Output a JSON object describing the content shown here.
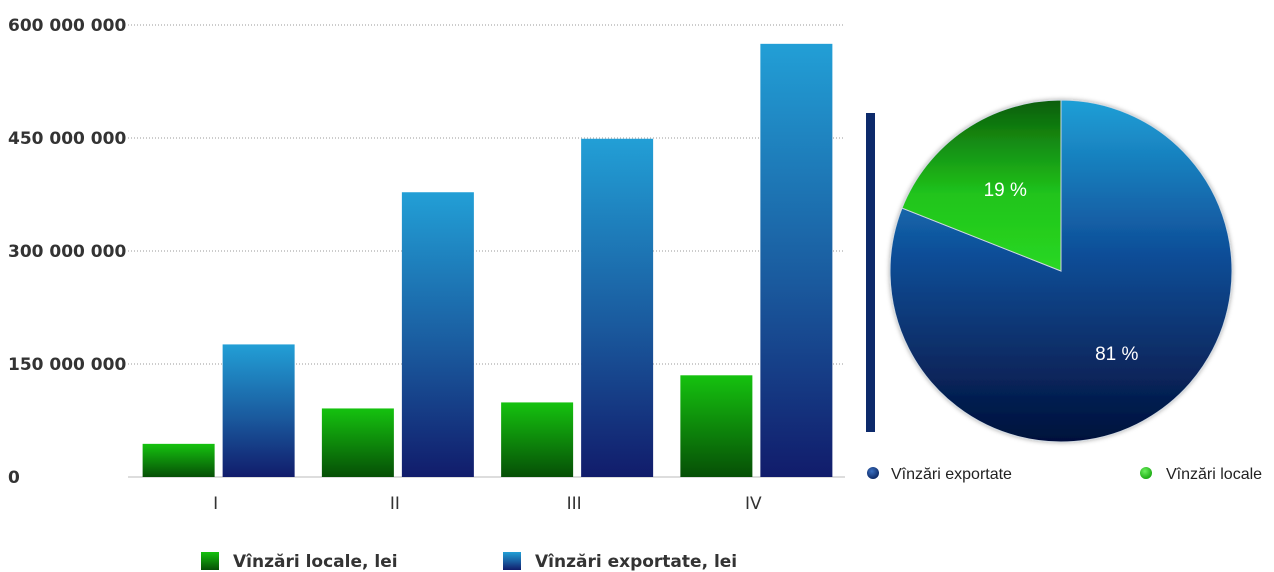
{
  "chart_data": [
    {
      "type": "bar",
      "categories": [
        "I",
        "II",
        "III",
        "IV"
      ],
      "series": [
        {
          "name": "Vînzări locale, lei",
          "values": [
            44000000,
            91000000,
            99000000,
            135000000
          ],
          "color": "#1a8a0c"
        },
        {
          "name": "Vînzări exportate, lei",
          "values": [
            176000000,
            378000000,
            449000000,
            575000000
          ],
          "color": "#1e5fa6"
        }
      ],
      "yticks": [
        0,
        150000000,
        300000000,
        450000000,
        600000000
      ],
      "ytick_labels": [
        "0",
        "150 000 000",
        "300 000 000",
        "450 000 000",
        "600 000 000"
      ],
      "ylim": [
        0,
        600000000
      ],
      "title": "",
      "xlabel": "",
      "ylabel": "",
      "grid": true,
      "legend_position": "bottom"
    },
    {
      "type": "pie",
      "labels": [
        "Vînzări exportate",
        "Vînzări locale"
      ],
      "values": [
        81,
        19
      ],
      "value_labels": [
        "81 %",
        "19 %"
      ],
      "colors": [
        "#0f3a7a",
        "#2ecc1a"
      ],
      "legend_position": "bottom"
    }
  ]
}
